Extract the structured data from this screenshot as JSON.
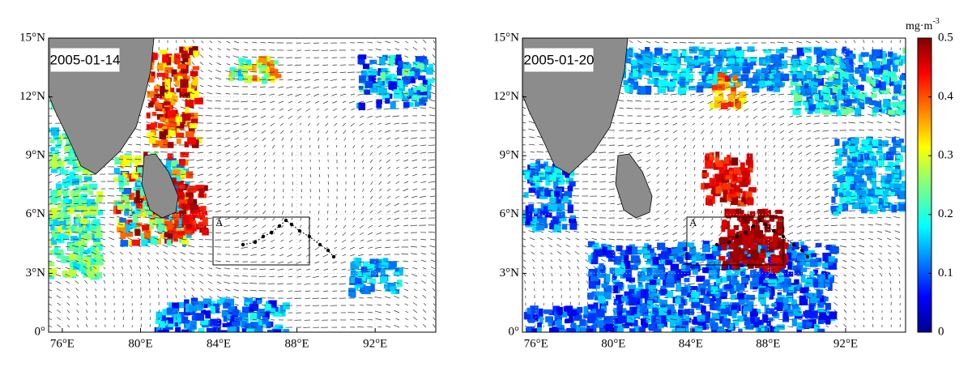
{
  "panels": [
    {
      "date": "2005-01-14",
      "box_label": "A",
      "xlim": [
        75.3,
        95.1
      ],
      "ylim": [
        0,
        15
      ],
      "xticks": [
        {
          "value": 76,
          "label": "76°E"
        },
        {
          "value": 80,
          "label": "80°E"
        },
        {
          "value": 84,
          "label": "84°E"
        },
        {
          "value": 88,
          "label": "88°E"
        },
        {
          "value": 92,
          "label": "92°E"
        }
      ],
      "yticks": [
        {
          "value": 0,
          "label": "0°"
        },
        {
          "value": 3,
          "label": "3°N"
        },
        {
          "value": 6,
          "label": "6°N"
        },
        {
          "value": 9,
          "label": "9°N"
        },
        {
          "value": 12,
          "label": "12°N"
        },
        {
          "value": 15,
          "label": "15°N"
        }
      ]
    },
    {
      "date": "2005-01-20",
      "box_label": "A",
      "xlim": [
        75.3,
        95.1
      ],
      "ylim": [
        0,
        15
      ],
      "xticks": [
        {
          "value": 76,
          "label": "76°E"
        },
        {
          "value": 80,
          "label": "80°E"
        },
        {
          "value": 84,
          "label": "84°E"
        },
        {
          "value": 88,
          "label": "88°E"
        },
        {
          "value": 92,
          "label": "92°E"
        }
      ],
      "yticks": [
        {
          "value": 0,
          "label": "0°"
        },
        {
          "value": 3,
          "label": "3°N"
        },
        {
          "value": 6,
          "label": "6°N"
        },
        {
          "value": 9,
          "label": "9°N"
        },
        {
          "value": 12,
          "label": "12°N"
        },
        {
          "value": 15,
          "label": "15°N"
        }
      ]
    }
  ],
  "colorbar": {
    "unit": {
      "base": "mg·m",
      "exponent": "-3"
    },
    "lim": [
      0,
      0.5
    ],
    "ticks": [
      0,
      0.1,
      0.2,
      0.3,
      0.4,
      0.5
    ]
  }
}
